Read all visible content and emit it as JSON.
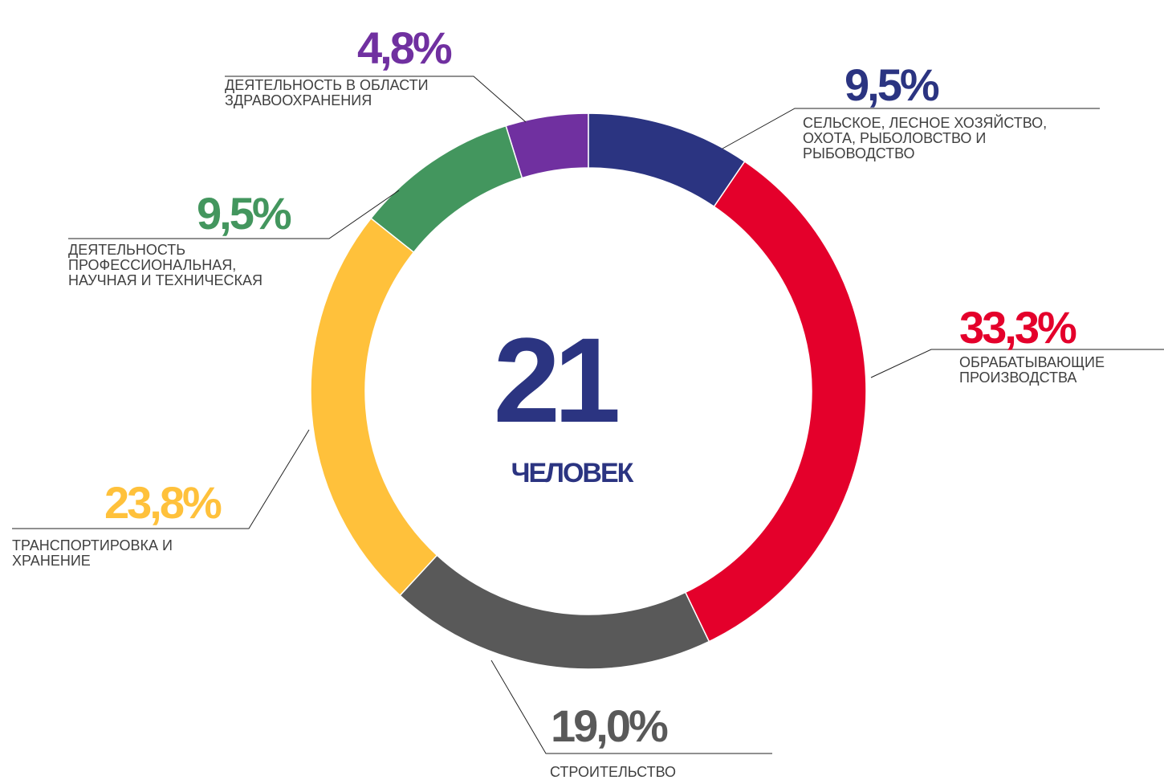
{
  "chart_data": {
    "type": "donut",
    "categories": [
      "СЕЛЬСКОЕ, ЛЕСНОЕ ХОЗЯЙСТВО,\nОХОТА, РЫБОЛОВСТВО И\nРЫБОВОДСТВО",
      "ОБРАБАТЫВАЮЩИЕ\nПРОИЗВОДСТВА",
      "СТРОИТЕЛЬСТВО",
      "ТРАНСПОРТИРОВКА И\nХРАНЕНИЕ",
      "ДЕЯТЕЛЬНОСТЬ\nПРОФЕССИОНАЛЬНАЯ,\nНАУЧНАЯ И ТЕХНИЧЕСКАЯ",
      "ДЕЯТЕЛЬНОСТЬ В ОБЛАСТИ\nЗДРАВООХРАНЕНИЯ"
    ],
    "values": [
      9.5,
      33.3,
      19.0,
      23.8,
      9.5,
      4.8
    ],
    "value_labels": [
      "9,5%",
      "33,3%",
      "19,0%",
      "23,8%",
      "9,5%",
      "4,8%"
    ],
    "colors": [
      "#2b3481",
      "#e4002b",
      "#595959",
      "#ffc13b",
      "#43965e",
      "#7030a0"
    ],
    "total": 21,
    "total_label": "ЧЕЛОВЕК"
  }
}
